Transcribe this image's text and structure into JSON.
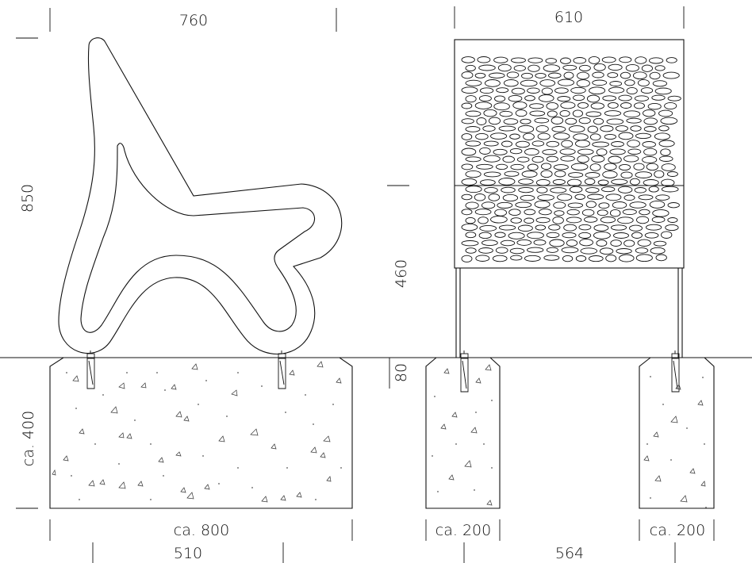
{
  "dimensions": {
    "side_width": "760",
    "front_width": "610",
    "seat_height": "850",
    "panel_lower_height": "460",
    "gap_height": "80",
    "foundation_height": "ca. 400",
    "foundation_width": "ca. 800",
    "anchor_spacing": "510",
    "pier_left_width": "ca. 200",
    "pier_right_width": "ca. 200",
    "pier_spacing": "564"
  }
}
